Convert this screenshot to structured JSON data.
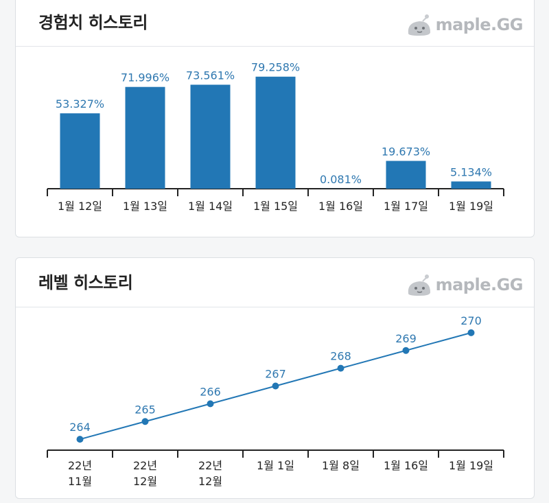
{
  "exp_card": {
    "title": "경험치 히스토리",
    "logo_text": "maple.GG"
  },
  "level_card": {
    "title": "레벨 히스토리",
    "logo_text": "maple.GG"
  },
  "colors": {
    "bar": "#2277b5",
    "line": "#2277b5",
    "label": "#2f78b0",
    "axis": "#222222",
    "logo": "#b5b8bc"
  },
  "chart_data": [
    {
      "type": "bar",
      "categories": [
        "1월 12일",
        "1월 13일",
        "1월 14일",
        "1월 15일",
        "1월 16일",
        "1월 17일",
        "1월 19일"
      ],
      "values": [
        53.327,
        71.996,
        73.561,
        79.258,
        0.081,
        19.673,
        5.134
      ],
      "data_labels": [
        "53.327%",
        "71.996%",
        "73.561%",
        "79.258%",
        "0.081%",
        "19.673%",
        "5.134%"
      ],
      "ylim": [
        0,
        100
      ],
      "grid": false,
      "legend": "none"
    },
    {
      "type": "line",
      "categories": [
        "22년 11월",
        "22년 12월",
        "22년 12월",
        "1월 1일",
        "1월 8일",
        "1월 16일",
        "1월 19일"
      ],
      "values": [
        264,
        265,
        266,
        267,
        268,
        269,
        270
      ],
      "data_labels": [
        "264",
        "265",
        "266",
        "267",
        "268",
        "269",
        "270"
      ],
      "ylim": [
        263,
        271
      ],
      "grid": false,
      "legend": "none"
    }
  ]
}
